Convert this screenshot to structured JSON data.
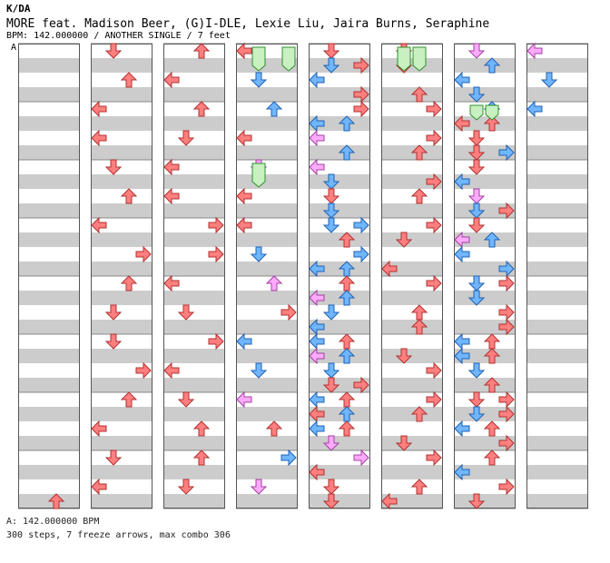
{
  "header": {
    "artist": "K/DA",
    "title": "MORE feat. Madison Beer, (G)I-DLE, Lexie Liu, Jaira Burns, Seraphine",
    "meta": "BPM: 142.000000 / ANOTHER SINGLE / 7 feet"
  },
  "chart": {
    "section_label": "A",
    "lanes": [
      "left",
      "down",
      "up",
      "right"
    ],
    "column_count": 8,
    "measures_per_column": 8
  },
  "footer": {
    "bpm_line": "A: 142.000000 BPM",
    "stats_line": "300 steps, 7 freeze arrows, max combo 306"
  },
  "colors": {
    "band": "#cccccc",
    "measure_line": "#888888",
    "red_arrow": "#ff7f7f",
    "red_stroke": "#b03030",
    "blue_arrow": "#6fb6ff",
    "blue_stroke": "#2060b0",
    "pink_arrow": "#ffaaff",
    "pink_stroke": "#a040a0",
    "freeze_fill": "#c8f0c0",
    "freeze_stroke": "#309030"
  }
}
